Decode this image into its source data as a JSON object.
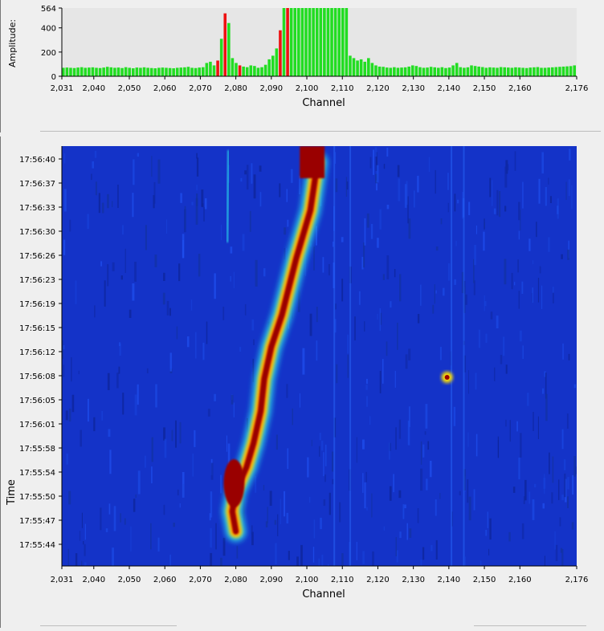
{
  "histogram": {
    "ylabel": "Amplitude:",
    "xlabel": "Channel",
    "y_ticks": [
      "564",
      "400",
      "200",
      "0"
    ],
    "y_tick_values": [
      564,
      400,
      200,
      0
    ],
    "ylim": [
      0,
      564
    ],
    "x_ticks": [
      "2,031",
      "2,040",
      "2,050",
      "2,060",
      "2,070",
      "2,080",
      "2,090",
      "2,100",
      "2,110",
      "2,120",
      "2,130",
      "2,140",
      "2,150",
      "2,160",
      "2,176"
    ],
    "x_tick_values": [
      2031,
      2040,
      2050,
      2060,
      2070,
      2080,
      2090,
      2100,
      2110,
      2120,
      2130,
      2140,
      2150,
      2160,
      2176
    ],
    "colors": {
      "normal": "#22dd22",
      "peak": "#ee1111",
      "background": "#e6e6e6"
    }
  },
  "chart_data": {
    "type": "bar",
    "title": "",
    "xlabel": "Channel",
    "ylabel": "Amplitude:",
    "xlim": [
      2031,
      2176
    ],
    "ylim": [
      0,
      564
    ],
    "channels_start": 2031,
    "values": [
      70,
      72,
      70,
      68,
      72,
      75,
      70,
      72,
      74,
      70,
      68,
      72,
      78,
      74,
      70,
      72,
      68,
      75,
      70,
      66,
      72,
      70,
      74,
      70,
      68,
      66,
      70,
      72,
      70,
      68,
      66,
      70,
      72,
      74,
      78,
      70,
      68,
      72,
      75,
      110,
      120,
      90,
      130,
      310,
      520,
      440,
      150,
      110,
      90,
      80,
      75,
      90,
      85,
      70,
      75,
      95,
      140,
      170,
      230,
      380,
      564,
      564,
      564,
      564,
      564,
      564,
      564,
      564,
      564,
      564,
      564,
      564,
      564,
      564,
      564,
      564,
      564,
      564,
      170,
      150,
      130,
      140,
      120,
      150,
      110,
      90,
      80,
      78,
      72,
      70,
      75,
      70,
      72,
      74,
      80,
      90,
      85,
      75,
      70,
      72,
      78,
      74,
      70,
      75,
      68,
      72,
      90,
      110,
      75,
      70,
      74,
      90,
      85,
      80,
      76,
      70,
      74,
      72,
      70,
      76,
      74,
      72,
      70,
      74,
      72,
      70,
      68,
      72,
      74,
      76,
      70,
      70,
      72,
      74,
      76,
      78,
      80,
      82,
      84,
      90
    ],
    "peak_indices": [
      42,
      44,
      48,
      59,
      61
    ]
  },
  "waterfall": {
    "ylabel": "Time",
    "xlabel": "Channel",
    "time_ticks": [
      "17:56:40",
      "17:56:37",
      "17:56:33",
      "17:56:30",
      "17:56:26",
      "17:56:23",
      "17:56:19",
      "17:56:15",
      "17:56:12",
      "17:56:08",
      "17:56:05",
      "17:56:01",
      "17:55:58",
      "17:55:54",
      "17:55:50",
      "17:55:47",
      "17:55:44"
    ],
    "x_ticks": [
      "2,031",
      "2,040",
      "2,050",
      "2,060",
      "2,070",
      "2,080",
      "2,090",
      "2,100",
      "2,110",
      "2,120",
      "2,130",
      "2,140",
      "2,150",
      "2,160",
      "2,176"
    ],
    "x_tick_values": [
      2031,
      2040,
      2050,
      2060,
      2070,
      2080,
      2090,
      2100,
      2110,
      2120,
      2130,
      2140,
      2150,
      2160,
      2176
    ],
    "colormap": [
      "#0a1f8f",
      "#1438d6",
      "#1f6fff",
      "#27c8e8",
      "#ffe000",
      "#ff6a00",
      "#c01010",
      "#7a0000"
    ],
    "signals": [
      {
        "channel_start": 2077,
        "channel_end": 2105,
        "description_time_start": "17:55:47",
        "description_time_end": "17:56:40"
      },
      {
        "channel": 2139,
        "time": "17:56:08"
      }
    ]
  }
}
